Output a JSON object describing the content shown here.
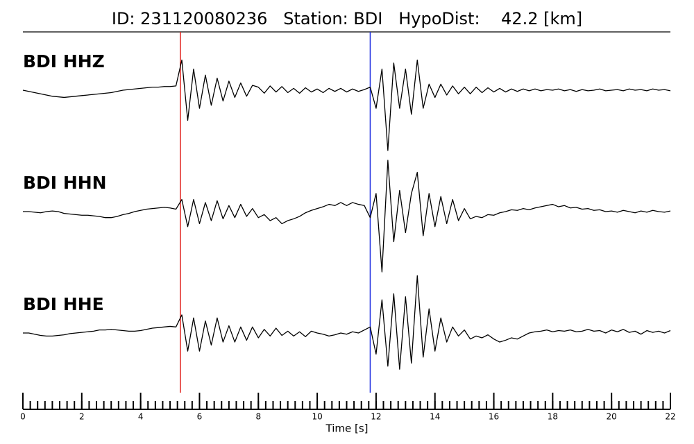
{
  "chart_data": {
    "type": "line",
    "title": "ID: 231120080236   Station: BDI   HypoDist:    42.2 [km]",
    "x_label": "Time [s]",
    "xlim": [
      0,
      22
    ],
    "xticks": [
      0,
      2,
      4,
      6,
      8,
      10,
      12,
      14,
      16,
      18,
      20,
      22
    ],
    "xminorstep": 0.25,
    "ylim": [
      -1,
      1
    ],
    "label_color": "#4e9a06",
    "vlines": [
      {
        "x": 5.35,
        "color": "#e0201b"
      },
      {
        "x": 11.8,
        "color": "#1f2fe0"
      }
    ],
    "x": [
      0,
      0.2,
      0.4,
      0.6,
      0.8,
      1,
      1.2,
      1.4,
      1.6,
      1.8,
      2,
      2.2,
      2.4,
      2.6,
      2.8,
      3,
      3.2,
      3.4,
      3.6,
      3.8,
      4,
      4.2,
      4.4,
      4.6,
      4.8,
      5,
      5.2,
      5.4,
      5.6,
      5.8,
      6,
      6.2,
      6.4,
      6.6,
      6.8,
      7,
      7.2,
      7.4,
      7.6,
      7.8,
      8,
      8.2,
      8.4,
      8.6,
      8.8,
      9,
      9.2,
      9.4,
      9.6,
      9.8,
      10,
      10.2,
      10.4,
      10.6,
      10.8,
      11,
      11.2,
      11.4,
      11.6,
      11.8,
      12,
      12.2,
      12.4,
      12.6,
      12.8,
      13,
      13.2,
      13.4,
      13.6,
      13.8,
      14,
      14.2,
      14.4,
      14.6,
      14.8,
      15,
      15.2,
      15.4,
      15.6,
      15.8,
      16,
      16.2,
      16.4,
      16.6,
      16.8,
      17,
      17.2,
      17.4,
      17.6,
      17.8,
      18,
      18.2,
      18.4,
      18.6,
      18.8,
      19,
      19.2,
      19.4,
      19.6,
      19.8,
      20,
      20.2,
      20.4,
      20.6,
      20.8,
      21,
      21.2,
      21.4,
      21.6,
      21.8,
      22
    ],
    "series": [
      {
        "name": "BDI HHZ",
        "color": "#000000",
        "values": [
          0,
          -0.02,
          -0.04,
          -0.06,
          -0.08,
          -0.1,
          -0.11,
          -0.12,
          -0.11,
          -0.1,
          -0.09,
          -0.08,
          -0.07,
          -0.06,
          -0.05,
          -0.04,
          -0.02,
          0,
          0.01,
          0.02,
          0.03,
          0.04,
          0.05,
          0.05,
          0.06,
          0.06,
          0.07,
          0.5,
          -0.5,
          0.35,
          -0.3,
          0.25,
          -0.25,
          0.2,
          -0.18,
          0.15,
          -0.12,
          0.12,
          -0.1,
          0.08,
          0.05,
          -0.05,
          0.07,
          -0.03,
          0.06,
          -0.04,
          0.03,
          -0.05,
          0.04,
          -0.03,
          0.02,
          -0.04,
          0.03,
          -0.02,
          0.03,
          -0.03,
          0.02,
          -0.02,
          0.01,
          0.05,
          -0.3,
          0.35,
          -1.0,
          0.45,
          -0.3,
          0.35,
          -0.4,
          0.5,
          -0.3,
          0.1,
          -0.12,
          0.1,
          -0.08,
          0.07,
          -0.06,
          0.05,
          -0.06,
          0.05,
          -0.04,
          0.04,
          -0.03,
          0.03,
          -0.03,
          0.02,
          -0.02,
          0.02,
          -0.01,
          0.02,
          -0.01,
          0.01,
          0,
          0.02,
          -0.01,
          0.01,
          -0.02,
          0.01,
          -0.01,
          0,
          0.02,
          -0.01,
          0,
          0.01,
          -0.01,
          0.02,
          0,
          0.01,
          -0.01,
          0.02,
          0,
          0.01,
          -0.01
        ]
      },
      {
        "name": "BDI HHN",
        "color": "#000000",
        "values": [
          0,
          0,
          -0.01,
          -0.02,
          0,
          0.01,
          0,
          -0.03,
          -0.04,
          -0.05,
          -0.06,
          -0.06,
          -0.07,
          -0.08,
          -0.1,
          -0.1,
          -0.08,
          -0.05,
          -0.03,
          0,
          0.02,
          0.04,
          0.05,
          0.06,
          0.07,
          0.06,
          0.04,
          0.2,
          -0.25,
          0.2,
          -0.2,
          0.15,
          -0.15,
          0.18,
          -0.12,
          0.1,
          -0.1,
          0.12,
          -0.08,
          0.05,
          -0.1,
          -0.05,
          -0.15,
          -0.1,
          -0.2,
          -0.15,
          -0.12,
          -0.08,
          -0.02,
          0.02,
          0.05,
          0.08,
          0.12,
          0.1,
          0.15,
          0.1,
          0.15,
          0.12,
          0.1,
          -0.1,
          0.3,
          -1.0,
          0.85,
          -0.5,
          0.35,
          -0.35,
          0.3,
          0.65,
          -0.4,
          0.3,
          -0.25,
          0.25,
          -0.2,
          0.2,
          -0.15,
          0.05,
          -0.12,
          -0.08,
          -0.1,
          -0.05,
          -0.06,
          -0.02,
          0,
          0.03,
          0.02,
          0.05,
          0.03,
          0.06,
          0.08,
          0.1,
          0.12,
          0.08,
          0.1,
          0.06,
          0.07,
          0.04,
          0.05,
          0.02,
          0.03,
          0,
          0.01,
          -0.01,
          0.02,
          0,
          -0.02,
          0.01,
          -0.01,
          0.02,
          0,
          -0.01,
          0.01
        ]
      },
      {
        "name": "BDI HHE",
        "color": "#000000",
        "values": [
          0,
          0,
          -0.02,
          -0.04,
          -0.05,
          -0.05,
          -0.04,
          -0.03,
          -0.01,
          0,
          0.01,
          0.02,
          0.03,
          0.05,
          0.05,
          0.06,
          0.05,
          0.04,
          0.03,
          0.03,
          0.04,
          0.06,
          0.08,
          0.09,
          0.1,
          0.11,
          0.1,
          0.3,
          -0.3,
          0.25,
          -0.3,
          0.2,
          -0.2,
          0.25,
          -0.15,
          0.12,
          -0.15,
          0.1,
          -0.12,
          0.1,
          -0.08,
          0.06,
          -0.05,
          0.08,
          -0.04,
          0.03,
          -0.05,
          0.02,
          -0.06,
          0.03,
          0,
          -0.02,
          -0.05,
          -0.03,
          0,
          -0.02,
          0.02,
          0,
          0.05,
          0.1,
          -0.35,
          0.55,
          -0.55,
          0.65,
          -0.6,
          0.6,
          -0.5,
          0.95,
          -0.4,
          0.4,
          -0.3,
          0.25,
          -0.15,
          0.1,
          -0.05,
          0.05,
          -0.1,
          -0.05,
          -0.08,
          -0.03,
          -0.1,
          -0.15,
          -0.12,
          -0.08,
          -0.1,
          -0.05,
          0,
          0.02,
          0.03,
          0.05,
          0.02,
          0.04,
          0.03,
          0.05,
          0.02,
          0.03,
          0.06,
          0.03,
          0.04,
          0,
          0.05,
          0.02,
          0.06,
          0.01,
          0.03,
          -0.02,
          0.04,
          0.01,
          0.03,
          0,
          0.04
        ]
      }
    ]
  }
}
